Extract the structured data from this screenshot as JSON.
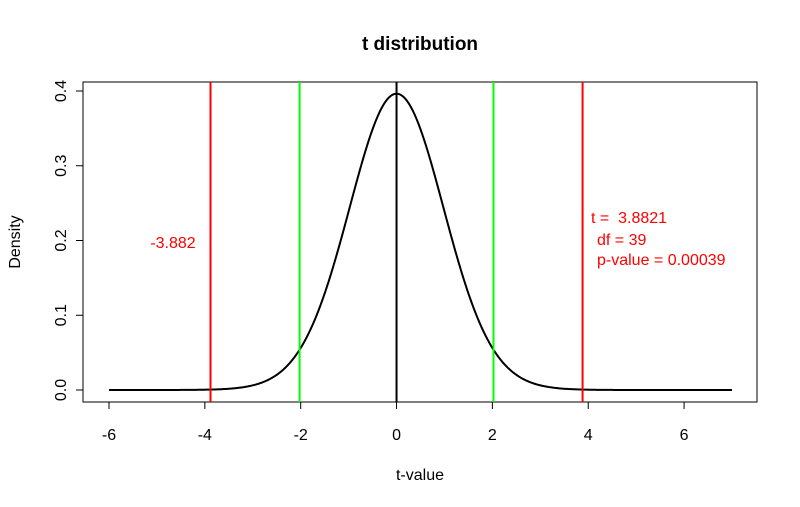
{
  "chart_data": {
    "type": "line",
    "title": "t distribution",
    "xlabel": "t-value",
    "ylabel": "Density",
    "xlim": [
      -6,
      7
    ],
    "ylim": [
      0,
      0.4
    ],
    "x_ticks": [
      "-6",
      "-4",
      "-2",
      "0",
      "2",
      "4",
      "6"
    ],
    "y_ticks": [
      "0.0",
      "0.1",
      "0.2",
      "0.3",
      "0.4"
    ],
    "df": 39,
    "curve_x_range": [
      -6,
      7
    ],
    "vertical_lines": [
      {
        "name": "t-negative",
        "x": -3.882,
        "color": "#ff0000"
      },
      {
        "name": "critical-negative",
        "x": -2.023,
        "color": "#00ff00"
      },
      {
        "name": "center",
        "x": 0,
        "color": "#000000"
      },
      {
        "name": "critical-positive",
        "x": 2.023,
        "color": "#00ff00"
      },
      {
        "name": "t-positive",
        "x": 3.882,
        "color": "#ff0000"
      }
    ],
    "annotations": {
      "left_value": "-3.882",
      "stats_lines": [
        "t =  3.8821",
        "df = 39",
        "p-value = 0.00039"
      ]
    },
    "grid": false,
    "legend": "none"
  }
}
